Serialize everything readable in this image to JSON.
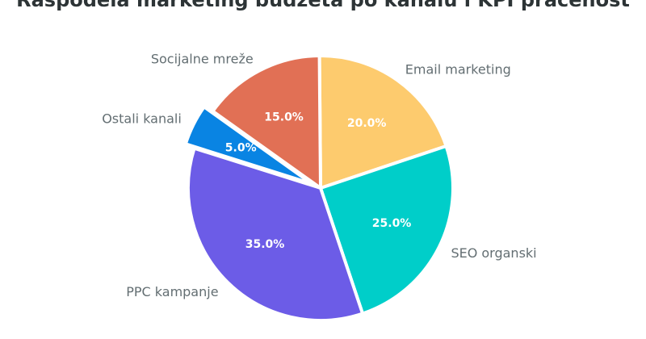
{
  "chart_data": {
    "type": "pie",
    "title": "Raspodela marketing budžeta po kanalu i KPI praćenost",
    "slices": [
      {
        "label": "Email marketing",
        "value": 20.0,
        "pct_label": "20.0%",
        "color": "#fdcb6e"
      },
      {
        "label": "SEO organski",
        "value": 25.0,
        "pct_label": "25.0%",
        "color": "#00cec9"
      },
      {
        "label": "PPC kampanje",
        "value": 35.0,
        "pct_label": "35.0%",
        "color": "#6c5ce7"
      },
      {
        "label": "Ostali kanali",
        "value": 5.0,
        "pct_label": "5.0%",
        "color": "#0984e3"
      },
      {
        "label": "Socijalne mreže",
        "value": 15.0,
        "pct_label": "15.0%",
        "color": "#e17055"
      }
    ]
  }
}
